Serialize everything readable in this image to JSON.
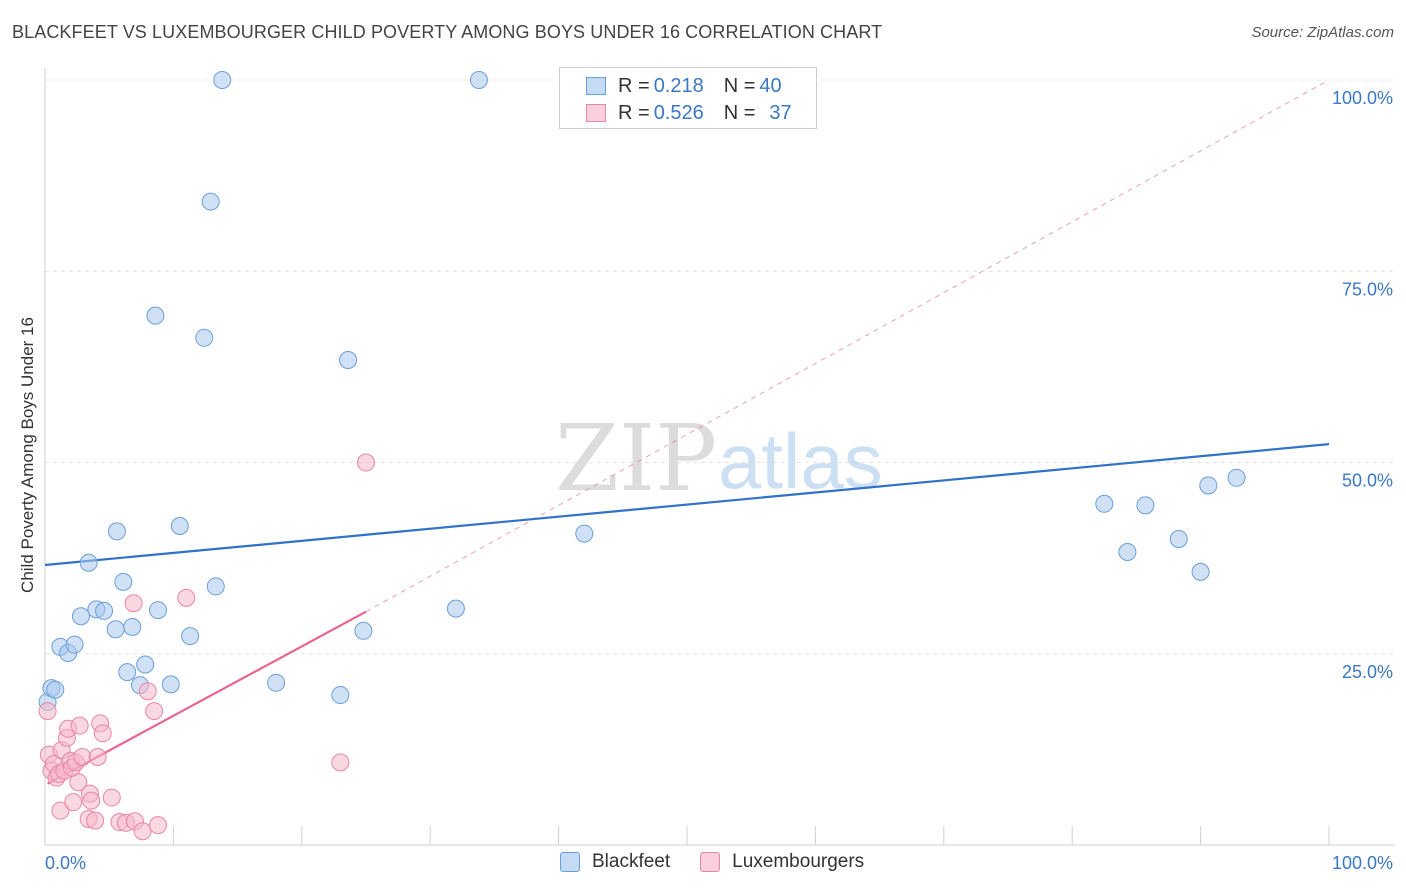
{
  "header": {
    "title": "BLACKFEET VS LUXEMBOURGER CHILD POVERTY AMONG BOYS UNDER 16 CORRELATION CHART",
    "source": "Source: ZipAtlas.com"
  },
  "watermark": {
    "zip": "ZIP",
    "atlas": "atlas"
  },
  "legend": {
    "rows": [
      {
        "r_label": "R = ",
        "r_value": "0.218",
        "n_label": "N = ",
        "n_value": "40",
        "color": "#aac8ee"
      },
      {
        "r_label": "R = ",
        "r_value": "0.526",
        "n_label": "N = ",
        "n_value": "37",
        "color": "#f5b8ca"
      }
    ]
  },
  "chart_data": {
    "type": "scatter",
    "title": "BLACKFEET VS LUXEMBOURGER CHILD POVERTY AMONG BOYS UNDER 16 CORRELATION CHART",
    "xlabel": "",
    "ylabel": "Child Poverty Among Boys Under 16",
    "xlim": [
      0,
      100
    ],
    "ylim": [
      0,
      100
    ],
    "x_tick_labels": [
      "0.0%",
      "100.0%"
    ],
    "y_tick_labels": [
      "25.0%",
      "50.0%",
      "75.0%",
      "100.0%"
    ],
    "y_ticks": [
      25,
      50,
      75,
      100
    ],
    "grid": true,
    "legend_position": "top-center",
    "series": [
      {
        "name": "Blackfeet",
        "color": "#aac8ee",
        "stroke": "#6a9fd8",
        "trend_color": "#2f72c8",
        "trend": {
          "x": [
            0,
            100
          ],
          "y": [
            36.6,
            52.4
          ]
        },
        "points": [
          [
            0.2,
            18.7
          ],
          [
            0.5,
            20.5
          ],
          [
            0.8,
            20.3
          ],
          [
            1.2,
            25.9
          ],
          [
            1.8,
            25.1
          ],
          [
            2.3,
            26.2
          ],
          [
            2.8,
            29.9
          ],
          [
            3.4,
            36.9
          ],
          [
            4.0,
            30.8
          ],
          [
            4.6,
            30.6
          ],
          [
            5.5,
            28.2
          ],
          [
            5.6,
            41.0
          ],
          [
            6.1,
            34.4
          ],
          [
            6.4,
            22.6
          ],
          [
            6.8,
            28.5
          ],
          [
            7.4,
            20.9
          ],
          [
            7.8,
            23.6
          ],
          [
            8.6,
            69.2
          ],
          [
            8.8,
            30.7
          ],
          [
            9.8,
            21.0
          ],
          [
            10.5,
            41.7
          ],
          [
            11.3,
            27.3
          ],
          [
            12.4,
            66.3
          ],
          [
            12.9,
            84.1
          ],
          [
            13.3,
            33.8
          ],
          [
            13.8,
            100.0
          ],
          [
            18.0,
            21.2
          ],
          [
            23.0,
            19.6
          ],
          [
            23.6,
            63.4
          ],
          [
            24.8,
            28.0
          ],
          [
            32.0,
            30.9
          ],
          [
            33.8,
            100.0
          ],
          [
            42.0,
            40.7
          ],
          [
            82.5,
            44.6
          ],
          [
            84.3,
            38.3
          ],
          [
            85.7,
            44.4
          ],
          [
            88.3,
            40.0
          ],
          [
            90.0,
            35.7
          ],
          [
            90.6,
            47.0
          ],
          [
            92.8,
            48.0
          ]
        ]
      },
      {
        "name": "Luxembourgers",
        "color": "#f5b8ca",
        "stroke": "#e886a4",
        "trend_color": "#e8658f",
        "trend": {
          "x": [
            0.2,
            25.0
          ],
          "y": [
            8.0,
            30.5
          ]
        },
        "trend_extension": {
          "x": [
            25.0,
            100.0
          ],
          "y": [
            30.5,
            100.0
          ]
        },
        "points": [
          [
            0.2,
            17.5
          ],
          [
            0.3,
            11.8
          ],
          [
            0.5,
            9.7
          ],
          [
            0.7,
            10.6
          ],
          [
            0.9,
            8.8
          ],
          [
            1.1,
            9.3
          ],
          [
            1.2,
            4.5
          ],
          [
            1.3,
            12.4
          ],
          [
            1.5,
            9.7
          ],
          [
            1.7,
            14.0
          ],
          [
            1.8,
            15.2
          ],
          [
            2.0,
            11.0
          ],
          [
            2.1,
            10.1
          ],
          [
            2.2,
            5.6
          ],
          [
            2.4,
            10.8
          ],
          [
            2.6,
            8.2
          ],
          [
            2.7,
            15.6
          ],
          [
            2.9,
            11.5
          ],
          [
            3.4,
            3.4
          ],
          [
            3.5,
            6.7
          ],
          [
            3.6,
            5.8
          ],
          [
            3.9,
            3.2
          ],
          [
            4.1,
            11.5
          ],
          [
            4.3,
            15.9
          ],
          [
            4.5,
            14.6
          ],
          [
            5.2,
            6.2
          ],
          [
            5.8,
            3.0
          ],
          [
            6.3,
            2.9
          ],
          [
            6.9,
            31.6
          ],
          [
            7.0,
            3.1
          ],
          [
            7.6,
            1.8
          ],
          [
            8.0,
            20.1
          ],
          [
            8.5,
            17.5
          ],
          [
            8.8,
            2.6
          ],
          [
            11.0,
            32.3
          ],
          [
            23.0,
            10.8
          ],
          [
            25.0,
            50.0
          ]
        ]
      }
    ]
  }
}
